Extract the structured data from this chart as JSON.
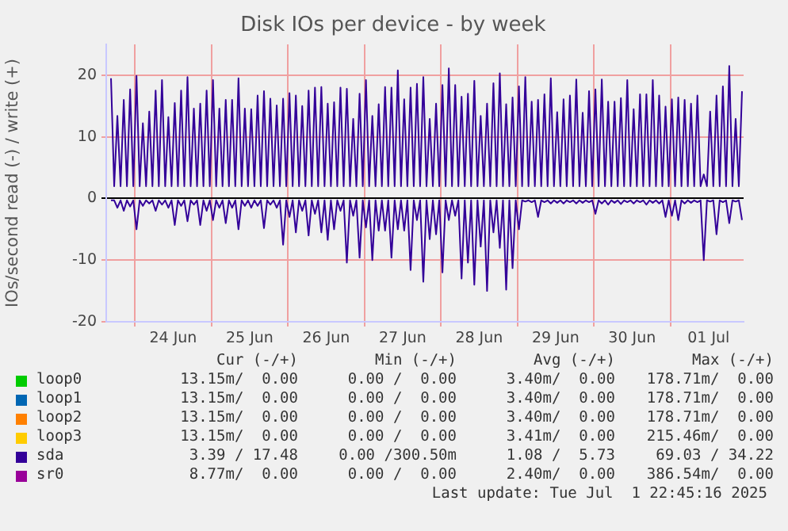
{
  "chart_data": {
    "type": "line",
    "title": "Disk IOs per device - by week",
    "ylabel": "IOs/second read (-) / write (+)",
    "xlim": [
      "2025-06-23T15:00",
      "2025-07-01T23:00"
    ],
    "xticks": [
      {
        "value": "2025-06-24T00:00",
        "label": null
      },
      {
        "value": "2025-06-24T12:00",
        "label": "24 Jun"
      },
      {
        "value": "2025-06-25T00:00",
        "label": null
      },
      {
        "value": "2025-06-25T12:00",
        "label": "25 Jun"
      },
      {
        "value": "2025-06-26T00:00",
        "label": null
      },
      {
        "value": "2025-06-26T12:00",
        "label": "26 Jun"
      },
      {
        "value": "2025-06-27T00:00",
        "label": null
      },
      {
        "value": "2025-06-27T12:00",
        "label": "27 Jun"
      },
      {
        "value": "2025-06-28T00:00",
        "label": null
      },
      {
        "value": "2025-06-28T12:00",
        "label": "28 Jun"
      },
      {
        "value": "2025-06-29T00:00",
        "label": null
      },
      {
        "value": "2025-06-29T12:00",
        "label": "29 Jun"
      },
      {
        "value": "2025-06-30T00:00",
        "label": null
      },
      {
        "value": "2025-06-30T12:00",
        "label": "30 Jun"
      },
      {
        "value": "2025-07-01T00:00",
        "label": null
      },
      {
        "value": "2025-07-01T12:00",
        "label": "01 Jul"
      }
    ],
    "ylim": [
      -20,
      25
    ],
    "yticks": [
      -20,
      -10,
      0,
      10,
      20
    ],
    "grid": true,
    "legend": "bottom",
    "marker": "none",
    "line_style": "solid",
    "x": [
      "2025-06-23T16:30",
      "2025-06-23T17:30",
      "2025-06-23T18:30",
      "2025-06-23T19:30",
      "2025-06-23T20:30",
      "2025-06-23T21:30",
      "2025-06-23T22:30",
      "2025-06-23T23:30",
      "2025-06-24T00:30",
      "2025-06-24T01:30",
      "2025-06-24T02:30",
      "2025-06-24T03:30",
      "2025-06-24T04:30",
      "2025-06-24T05:30",
      "2025-06-24T06:30",
      "2025-06-24T07:30",
      "2025-06-24T08:30",
      "2025-06-24T09:30",
      "2025-06-24T10:30",
      "2025-06-24T11:30",
      "2025-06-24T12:30",
      "2025-06-24T13:30",
      "2025-06-24T14:30",
      "2025-06-24T15:30",
      "2025-06-24T16:30",
      "2025-06-24T17:30",
      "2025-06-24T18:30",
      "2025-06-24T19:30",
      "2025-06-24T20:30",
      "2025-06-24T21:30",
      "2025-06-24T22:30",
      "2025-06-24T23:30",
      "2025-06-25T00:30",
      "2025-06-25T01:30",
      "2025-06-25T02:30",
      "2025-06-25T03:30",
      "2025-06-25T04:30",
      "2025-06-25T05:30",
      "2025-06-25T06:30",
      "2025-06-25T07:30",
      "2025-06-25T08:30",
      "2025-06-25T09:30",
      "2025-06-25T10:30",
      "2025-06-25T11:30",
      "2025-06-25T12:30",
      "2025-06-25T13:30",
      "2025-06-25T14:30",
      "2025-06-25T15:30",
      "2025-06-25T16:30",
      "2025-06-25T17:30",
      "2025-06-25T18:30",
      "2025-06-25T19:30",
      "2025-06-25T20:30",
      "2025-06-25T21:30",
      "2025-06-25T22:30",
      "2025-06-25T23:30",
      "2025-06-26T00:30",
      "2025-06-26T01:30",
      "2025-06-26T02:30",
      "2025-06-26T03:30",
      "2025-06-26T04:30",
      "2025-06-26T05:30",
      "2025-06-26T06:30",
      "2025-06-26T07:30",
      "2025-06-26T08:30",
      "2025-06-26T09:30",
      "2025-06-26T10:30",
      "2025-06-26T11:30",
      "2025-06-26T12:30",
      "2025-06-26T13:30",
      "2025-06-26T14:30",
      "2025-06-26T15:30",
      "2025-06-26T16:30",
      "2025-06-26T17:30",
      "2025-06-26T18:30",
      "2025-06-26T19:30",
      "2025-06-26T20:30",
      "2025-06-26T21:30",
      "2025-06-26T22:30",
      "2025-06-26T23:30",
      "2025-06-27T00:30",
      "2025-06-27T01:30",
      "2025-06-27T02:30",
      "2025-06-27T03:30",
      "2025-06-27T04:30",
      "2025-06-27T05:30",
      "2025-06-27T06:30",
      "2025-06-27T07:30",
      "2025-06-27T08:30",
      "2025-06-27T09:30",
      "2025-06-27T10:30",
      "2025-06-27T11:30",
      "2025-06-27T12:30",
      "2025-06-27T13:30",
      "2025-06-27T14:30",
      "2025-06-27T15:30",
      "2025-06-27T16:30",
      "2025-06-27T17:30",
      "2025-06-27T18:30",
      "2025-06-27T19:30",
      "2025-06-27T20:30",
      "2025-06-27T21:30",
      "2025-06-27T22:30",
      "2025-06-27T23:30",
      "2025-06-28T00:30",
      "2025-06-28T01:30",
      "2025-06-28T02:30",
      "2025-06-28T03:30",
      "2025-06-28T04:30",
      "2025-06-28T05:30",
      "2025-06-28T06:30",
      "2025-06-28T07:30",
      "2025-06-28T08:30",
      "2025-06-28T09:30",
      "2025-06-28T10:30",
      "2025-06-28T11:30",
      "2025-06-28T12:30",
      "2025-06-28T13:30",
      "2025-06-28T14:30",
      "2025-06-28T15:30",
      "2025-06-28T16:30",
      "2025-06-28T17:30",
      "2025-06-28T18:30",
      "2025-06-28T19:30",
      "2025-06-28T20:30",
      "2025-06-28T21:30",
      "2025-06-28T22:30",
      "2025-06-28T23:30",
      "2025-06-29T00:30",
      "2025-06-29T01:30",
      "2025-06-29T02:30",
      "2025-06-29T03:30",
      "2025-06-29T04:30",
      "2025-06-29T05:30",
      "2025-06-29T06:30",
      "2025-06-29T07:30",
      "2025-06-29T08:30",
      "2025-06-29T09:30",
      "2025-06-29T10:30",
      "2025-06-29T11:30",
      "2025-06-29T12:30",
      "2025-06-29T13:30",
      "2025-06-29T14:30",
      "2025-06-29T15:30",
      "2025-06-29T16:30",
      "2025-06-29T17:30",
      "2025-06-29T18:30",
      "2025-06-29T19:30",
      "2025-06-29T20:30",
      "2025-06-29T21:30",
      "2025-06-29T22:30",
      "2025-06-29T23:30",
      "2025-06-30T00:30",
      "2025-06-30T01:30",
      "2025-06-30T02:30",
      "2025-06-30T03:30",
      "2025-06-30T04:30",
      "2025-06-30T05:30",
      "2025-06-30T06:30",
      "2025-06-30T07:30",
      "2025-06-30T08:30",
      "2025-06-30T09:30",
      "2025-06-30T10:30",
      "2025-06-30T11:30",
      "2025-06-30T12:30",
      "2025-06-30T13:30",
      "2025-06-30T14:30",
      "2025-06-30T15:30",
      "2025-06-30T16:30",
      "2025-06-30T17:30",
      "2025-06-30T18:30",
      "2025-06-30T19:30",
      "2025-06-30T20:30",
      "2025-06-30T21:30",
      "2025-06-30T22:30",
      "2025-06-30T23:30",
      "2025-07-01T00:30",
      "2025-07-01T01:30",
      "2025-07-01T02:30",
      "2025-07-01T03:30",
      "2025-07-01T04:30",
      "2025-07-01T05:30",
      "2025-07-01T06:30",
      "2025-07-01T07:30",
      "2025-07-01T08:30",
      "2025-07-01T09:30",
      "2025-07-01T10:30",
      "2025-07-01T11:30",
      "2025-07-01T12:30",
      "2025-07-01T13:30",
      "2025-07-01T14:30",
      "2025-07-01T15:30",
      "2025-07-01T16:30",
      "2025-07-01T17:30",
      "2025-07-01T18:30",
      "2025-07-01T19:30",
      "2025-07-01T20:30",
      "2025-07-01T21:30",
      "2025-07-01T22:30"
    ],
    "series": [
      {
        "name": "loop0",
        "color": "#00cc00",
        "values": [
          null,
          null,
          null,
          null,
          null,
          null,
          null,
          null,
          null,
          null,
          null,
          null,
          null,
          null,
          null,
          null,
          null,
          null,
          null,
          null,
          null,
          null,
          null,
          null,
          null,
          null,
          null,
          null,
          null,
          null,
          null,
          null,
          null,
          null,
          null,
          null,
          null,
          null,
          null,
          null,
          null,
          null,
          null,
          null,
          null,
          null,
          null,
          null,
          null,
          null,
          null,
          null,
          null,
          null,
          null,
          null,
          null,
          null,
          null,
          null,
          null,
          null,
          null,
          null,
          null,
          null,
          null,
          null,
          null,
          null,
          null,
          null,
          null,
          null,
          null,
          null,
          null,
          null,
          null,
          null,
          null,
          null,
          null,
          null,
          null,
          null,
          null,
          null,
          null,
          null,
          null,
          null,
          null,
          null,
          null,
          null,
          null,
          null,
          null,
          null,
          null,
          null,
          null,
          null,
          null,
          null,
          null,
          null,
          null,
          null,
          null,
          null,
          null,
          null,
          null,
          null,
          null,
          null,
          null,
          null,
          null,
          null,
          null,
          null,
          null,
          null,
          null,
          null,
          null,
          null,
          null,
          null,
          null,
          null,
          null,
          null,
          null,
          null,
          null,
          null,
          null,
          null,
          null,
          null,
          null,
          null,
          null,
          null,
          null,
          null,
          null,
          null,
          null,
          null,
          null,
          null,
          null,
          null,
          null,
          null,
          null,
          null,
          null,
          null,
          null,
          null,
          null,
          null,
          null,
          null,
          null,
          null,
          null,
          null,
          null,
          null,
          null,
          null,
          null,
          null,
          null,
          null,
          null,
          null,
          null,
          null,
          null,
          null,
          null,
          null,
          null,
          null,
          null,
          null,
          null,
          null,
          null,
          null,
          null
        ]
      },
      {
        "name": "loop1",
        "color": "#0066b3",
        "values": [
          null,
          null,
          null,
          null,
          null,
          null,
          null,
          null,
          null,
          null,
          null,
          null,
          null,
          null,
          null,
          null,
          null,
          null,
          null,
          null,
          null,
          null,
          null,
          null,
          null,
          null,
          null,
          null,
          null,
          null,
          null,
          null,
          null,
          null,
          null,
          null,
          null,
          null,
          null,
          null,
          null,
          null,
          null,
          null,
          null,
          null,
          null,
          null,
          null,
          null,
          null,
          null,
          null,
          null,
          null,
          null,
          null,
          null,
          null,
          null,
          null,
          null,
          null,
          null,
          null,
          null,
          null,
          null,
          null,
          null,
          null,
          null,
          null,
          null,
          null,
          null,
          null,
          null,
          null,
          null,
          null,
          null,
          null,
          null,
          null,
          null,
          null,
          null,
          null,
          null,
          null,
          null,
          null,
          null,
          null,
          null,
          null,
          null,
          null,
          null,
          null,
          null,
          null,
          null,
          null,
          null,
          null,
          null,
          null,
          null,
          null,
          null,
          null,
          null,
          null,
          null,
          null,
          null,
          null,
          null,
          null,
          null,
          null,
          null,
          null,
          null,
          null,
          null,
          null,
          null,
          null,
          null,
          null,
          null,
          null,
          null,
          null,
          null,
          null,
          null,
          null,
          null,
          null,
          null,
          null,
          null,
          null,
          null,
          null,
          null,
          null,
          null,
          null,
          null,
          null,
          null,
          null,
          null,
          null,
          null,
          null,
          null,
          null,
          null,
          null,
          null,
          null,
          null,
          null,
          null,
          null,
          null,
          null,
          null,
          null,
          null,
          null,
          null,
          null,
          null,
          null,
          null,
          null,
          null,
          null,
          null,
          null,
          null,
          null,
          null,
          null,
          null,
          null,
          null,
          null,
          null,
          null,
          null,
          null
        ]
      },
      {
        "name": "loop2",
        "color": "#ff8000",
        "values": [
          null,
          null,
          null,
          null,
          null,
          null,
          null,
          null,
          null,
          null,
          null,
          null,
          null,
          null,
          null,
          null,
          null,
          null,
          null,
          null,
          null,
          null,
          null,
          null,
          null,
          null,
          null,
          null,
          null,
          null,
          null,
          null,
          null,
          null,
          null,
          null,
          null,
          null,
          null,
          null,
          null,
          null,
          null,
          null,
          null,
          null,
          null,
          null,
          null,
          null,
          null,
          null,
          null,
          null,
          null,
          null,
          null,
          null,
          null,
          null,
          null,
          null,
          null,
          null,
          null,
          null,
          null,
          null,
          null,
          null,
          null,
          null,
          null,
          null,
          null,
          null,
          null,
          null,
          null,
          null,
          null,
          null,
          null,
          null,
          null,
          null,
          null,
          null,
          null,
          null,
          null,
          null,
          null,
          null,
          null,
          null,
          null,
          null,
          null,
          null,
          null,
          null,
          null,
          null,
          null,
          null,
          null,
          null,
          null,
          null,
          null,
          null,
          null,
          null,
          null,
          null,
          null,
          null,
          null,
          null,
          null,
          null,
          null,
          null,
          null,
          null,
          null,
          null,
          null,
          null,
          null,
          null,
          null,
          null,
          null,
          null,
          null,
          null,
          null,
          null,
          null,
          null,
          null,
          null,
          null,
          null,
          null,
          null,
          null,
          null,
          null,
          null,
          null,
          null,
          null,
          null,
          null,
          null,
          null,
          null,
          null,
          null,
          null,
          null,
          null,
          null,
          null,
          null,
          null,
          null,
          null,
          null,
          null,
          null,
          null,
          null,
          null,
          null,
          null,
          null,
          null,
          null,
          null,
          null,
          null,
          null,
          null,
          null,
          null,
          null,
          null,
          null,
          null,
          null,
          null,
          null,
          null,
          null,
          null
        ]
      },
      {
        "name": "loop3",
        "color": "#ffcc00",
        "values": [
          null,
          null,
          null,
          null,
          null,
          null,
          null,
          null,
          null,
          null,
          null,
          null,
          null,
          null,
          null,
          null,
          null,
          null,
          null,
          null,
          null,
          null,
          null,
          null,
          null,
          null,
          null,
          null,
          null,
          null,
          null,
          null,
          null,
          null,
          null,
          null,
          null,
          null,
          null,
          null,
          null,
          null,
          null,
          null,
          null,
          null,
          null,
          null,
          null,
          null,
          null,
          null,
          null,
          null,
          null,
          null,
          null,
          null,
          null,
          null,
          null,
          null,
          null,
          null,
          null,
          null,
          null,
          null,
          null,
          null,
          null,
          null,
          null,
          null,
          null,
          null,
          null,
          null,
          null,
          null,
          null,
          null,
          null,
          null,
          null,
          null,
          null,
          null,
          null,
          null,
          null,
          null,
          null,
          null,
          null,
          null,
          null,
          null,
          null,
          null,
          null,
          null,
          null,
          null,
          null,
          null,
          null,
          null,
          null,
          null,
          null,
          null,
          null,
          null,
          null,
          null,
          null,
          null,
          null,
          null,
          null,
          null,
          null,
          null,
          null,
          null,
          null,
          null,
          null,
          null,
          null,
          null,
          null,
          null,
          null,
          null,
          null,
          null,
          null,
          null,
          null,
          null,
          null,
          null,
          null,
          null,
          null,
          null,
          null,
          null,
          null,
          null,
          null,
          null,
          null,
          null,
          null,
          null,
          null,
          null,
          null,
          null,
          null,
          null,
          null,
          null,
          null,
          null,
          null,
          null,
          null,
          null,
          null,
          null,
          null,
          null,
          null,
          null,
          null,
          null,
          null,
          null,
          null,
          null,
          null,
          null,
          null,
          null,
          null,
          null,
          null,
          null,
          null,
          null,
          null,
          null,
          null,
          null,
          null
        ]
      },
      {
        "color": "#330099",
        "values": [
          -0.3,
          -0.3,
          -1.5,
          -0.3,
          -2,
          -0.3,
          -1.3,
          -0.3,
          -5,
          -0.3,
          -1.2,
          -0.3,
          -0.8,
          -0.3,
          -2,
          -0.3,
          -1,
          -0.3,
          -1.5,
          -0.3,
          -4.3,
          -0.3,
          -1.2,
          -0.3,
          -3.7,
          -0.3,
          -1,
          -0.3,
          -4.3,
          -0.3,
          -2,
          -0.3,
          -3.5,
          -0.3,
          -1.5,
          -0.3,
          -4,
          -0.3,
          -1.5,
          -0.3,
          -5,
          -0.3,
          -1.2,
          -0.3,
          -1.5,
          -0.3,
          -1.2,
          -0.3,
          -4.8,
          -0.3,
          -1,
          -0.3,
          -1.5,
          -0.3,
          -7.5,
          -0.3,
          -3,
          -0.3,
          -5.5,
          -0.3,
          -2,
          -0.3,
          -6,
          -0.3,
          -2.5,
          -0.3,
          -5.5,
          -0.3,
          -6.7,
          -0.3,
          -5,
          -0.3,
          -2,
          -0.3,
          -10.4,
          -0.3,
          -2.8,
          -0.3,
          -9.6,
          -0.3,
          -4.7,
          -0.3,
          -10,
          -0.3,
          -5.2,
          -0.3,
          -5.2,
          -0.3,
          -9.6,
          -0.3,
          -5,
          -0.3,
          -5.2,
          -0.3,
          -11.6,
          -0.3,
          -3.5,
          -0.3,
          -13.5,
          -0.3,
          -6.6,
          -0.3,
          -5.8,
          -0.3,
          -12,
          -0.3,
          -3.5,
          -0.3,
          -2.8,
          -0.3,
          -13,
          -0.3,
          -10.4,
          -0.3,
          -14,
          -0.3,
          -7.8,
          -0.3,
          -15,
          -0.3,
          -5.5,
          -0.3,
          -8,
          -0.3,
          -14.8,
          -0.3,
          -11.3,
          -0.3,
          -5,
          -0.3,
          -0.5,
          -0.3,
          -0.6,
          -0.3,
          -3,
          -0.3,
          -0.6,
          -0.3,
          -0.8,
          -0.3,
          -0.7,
          -0.3,
          -0.8,
          -0.3,
          -0.6,
          -0.3,
          -0.8,
          -0.3,
          -0.7,
          -0.3,
          -0.6,
          -0.3,
          -2.5,
          -0.3,
          -0.8,
          -0.3,
          -1,
          -0.3,
          -0.7,
          -0.3,
          -0.9,
          -0.3,
          -0.6,
          -0.3,
          -0.8,
          -0.3,
          -0.6,
          -0.3,
          -1,
          -0.3,
          -0.7,
          -0.3,
          -0.8,
          -0.3,
          -3,
          -0.3,
          -2.8,
          -0.3,
          -3.5,
          -0.3,
          -0.8,
          -0.3,
          -0.7,
          -0.3,
          -0.6,
          -0.3,
          -10,
          -0.3,
          -0.5,
          -0.3,
          -5.8,
          -0.3,
          -0.6,
          -0.3,
          -4,
          -0.3,
          -0.5,
          -0.3,
          -3.5
        ]
      },
      {
        "name": "sda",
        "color": "#330099",
        "values": [
          19.5,
          2,
          13.4,
          2,
          16,
          2,
          17.7,
          2,
          19.9,
          2,
          12.2,
          2,
          14.1,
          2,
          17.5,
          2,
          19.2,
          2,
          13.2,
          2,
          15.5,
          2,
          17.5,
          2,
          19.7,
          2,
          14.6,
          2,
          15.4,
          2,
          17.5,
          2,
          19.2,
          2,
          14.6,
          2,
          16,
          2,
          16,
          2,
          19.5,
          2,
          14.6,
          2,
          14.5,
          2,
          16.7,
          2,
          17.4,
          2,
          16.2,
          2,
          15.1,
          2,
          16.2,
          2,
          17.1,
          2,
          16.7,
          2,
          15,
          2,
          17.5,
          2,
          18,
          2,
          18.1,
          2,
          15.4,
          2,
          15.6,
          2,
          18,
          2,
          17.8,
          2,
          12.9,
          2,
          17,
          2,
          19.2,
          2,
          13.4,
          2,
          15.3,
          2,
          18.1,
          2,
          18,
          2,
          20.8,
          2,
          16.1,
          2,
          18,
          2,
          18.6,
          2,
          19.7,
          2,
          12.9,
          2,
          15.4,
          2,
          18.4,
          2,
          21.1,
          2,
          18.4,
          2,
          16.5,
          2,
          17,
          2,
          19.1,
          2,
          13.4,
          2,
          15.4,
          2,
          18.7,
          2,
          20.3,
          2,
          15.3,
          2,
          16.4,
          2,
          18.2,
          2,
          19.7,
          2,
          15.7,
          2,
          16,
          2,
          16.9,
          2,
          19.5,
          2,
          14,
          2,
          16.1,
          2,
          16.7,
          2,
          19.3,
          2,
          13.9,
          2,
          17.4,
          2,
          17.7,
          2,
          19.3,
          2,
          15.7,
          2,
          15.7,
          2,
          16.3,
          2,
          19.2,
          2,
          14.5,
          2,
          16.9,
          2,
          16.9,
          2,
          19.2,
          2,
          16.7,
          2,
          14.9,
          2,
          16.1,
          2,
          16.4,
          2,
          16,
          2,
          15.4,
          2,
          16.7,
          2,
          3.9,
          2,
          14.1,
          2,
          16.7,
          2,
          18.2,
          2,
          21.5,
          2,
          12.9,
          2,
          17.4
        ]
      },
      {
        "name": "sr0",
        "color": "#990099",
        "values": [
          null,
          null,
          null,
          null,
          null,
          null,
          null,
          null,
          null,
          null,
          null,
          null,
          null,
          null,
          null,
          null,
          null,
          null,
          null,
          null,
          null,
          null,
          null,
          null,
          null,
          null,
          null,
          null,
          null,
          null,
          null,
          null,
          null,
          null,
          null,
          null,
          null,
          null,
          null,
          null,
          null,
          null,
          null,
          null,
          null,
          null,
          null,
          null,
          null,
          null,
          null,
          null,
          null,
          null,
          null,
          null,
          null,
          null,
          null,
          null,
          null,
          null,
          null,
          null,
          null,
          null,
          null,
          null,
          null,
          null,
          null,
          null,
          null,
          null,
          null,
          null,
          null,
          null,
          null,
          null,
          null,
          null,
          null,
          null,
          null,
          null,
          null,
          null,
          null,
          null,
          null,
          null,
          null,
          null,
          null,
          null,
          null,
          null,
          null,
          null,
          null,
          null,
          null,
          null,
          null,
          null,
          null,
          null,
          null,
          null,
          null,
          null,
          null,
          null,
          null,
          null,
          null,
          null,
          null,
          null,
          null,
          null,
          null,
          null,
          null,
          null,
          null,
          null,
          null,
          null,
          null,
          null,
          null,
          null,
          null,
          null,
          null,
          null,
          null,
          null,
          null,
          null,
          null,
          null,
          null,
          null,
          null,
          null,
          null,
          null,
          null,
          null,
          null,
          null,
          null,
          null,
          null,
          null,
          null,
          null,
          null,
          null,
          null,
          null,
          null,
          null,
          null,
          null,
          null,
          null,
          null,
          null,
          null,
          null,
          null,
          null,
          null,
          null,
          null,
          null,
          null,
          null,
          null,
          null,
          null,
          null,
          null,
          null,
          null,
          null,
          null,
          null,
          null,
          null,
          null,
          null,
          null,
          null,
          null
        ]
      }
    ],
    "annotations": [
      "Cur (-/+)",
      "Min (-/+)",
      "Avg (-/+)",
      "Max (-/+)",
      "13.15m/  0.00",
      "0.00 /  0.00",
      "3.40m/  0.00",
      "178.71m/  0.00",
      "13.15m/  0.00",
      "0.00 /  0.00",
      "3.40m/  0.00",
      "178.71m/  0.00",
      "13.15m/  0.00",
      "0.00 /  0.00",
      "3.40m/  0.00",
      "178.71m/  0.00",
      "13.15m/  0.00",
      "0.00 /  0.00",
      "3.41m/  0.00",
      "215.46m/  0.00",
      "3.39 / 17.48",
      "0.00 /300.50m",
      "1.08 /  5.73",
      "69.03 / 34.22",
      "8.77m/  0.00",
      "0.00 /  0.00",
      "2.40m/  0.00",
      "386.54m/  0.00",
      "Last update: Tue Jul  1 22:45:16 2025"
    ]
  }
}
